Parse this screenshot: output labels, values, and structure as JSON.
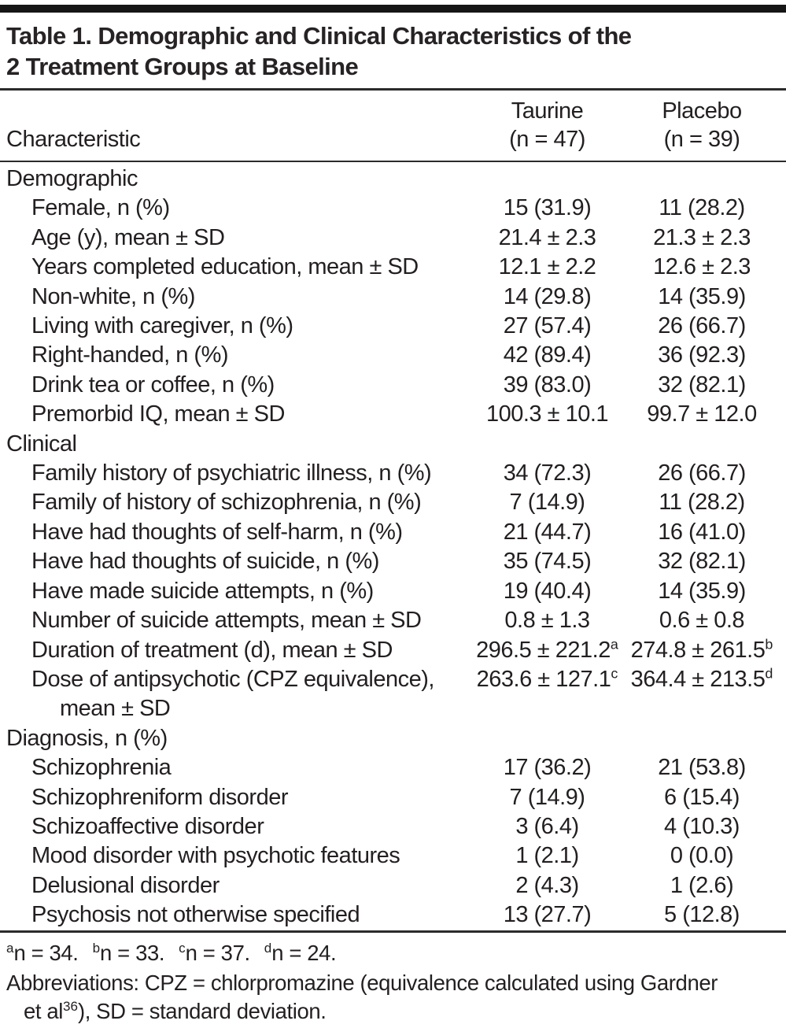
{
  "document": {
    "title_lines": [
      "Table 1. Demographic and Clinical Characteristics of the",
      "2 Treatment Groups at Baseline"
    ]
  },
  "table": {
    "header": {
      "characteristic": "Characteristic",
      "groups": [
        {
          "name": "Taurine",
          "n_label": "(n = 47)"
        },
        {
          "name": "Placebo",
          "n_label": "(n = 39)"
        }
      ]
    },
    "rows": [
      {
        "type": "section",
        "label": "Demographic"
      },
      {
        "type": "item",
        "label": "Female, n (%)",
        "taurine": "15 (31.9)",
        "placebo": "11 (28.2)"
      },
      {
        "type": "item",
        "label": "Age (y), mean ± SD",
        "taurine": "21.4 ± 2.3",
        "placebo": "21.3 ± 2.3"
      },
      {
        "type": "item",
        "label": "Years completed education, mean ± SD",
        "taurine": "12.1 ± 2.2",
        "placebo": "12.6 ± 2.3"
      },
      {
        "type": "item",
        "label": "Non-white, n (%)",
        "taurine": "14 (29.8)",
        "placebo": "14 (35.9)"
      },
      {
        "type": "item",
        "label": "Living with caregiver, n (%)",
        "taurine": "27 (57.4)",
        "placebo": "26 (66.7)"
      },
      {
        "type": "item",
        "label": "Right-handed, n (%)",
        "taurine": "42 (89.4)",
        "placebo": "36 (92.3)"
      },
      {
        "type": "item",
        "label": "Drink tea or coffee, n (%)",
        "taurine": "39 (83.0)",
        "placebo": "32 (82.1)"
      },
      {
        "type": "item",
        "label": "Premorbid IQ, mean ± SD",
        "taurine": "100.3 ± 10.1",
        "placebo": "99.7 ± 12.0"
      },
      {
        "type": "section",
        "label": "Clinical"
      },
      {
        "type": "item",
        "label": "Family history of psychiatric illness, n (%)",
        "taurine": "34 (72.3)",
        "placebo": "26 (66.7)"
      },
      {
        "type": "item",
        "label": "Family of history of schizophrenia, n (%)",
        "taurine": "7 (14.9)",
        "placebo": "11 (28.2)"
      },
      {
        "type": "item",
        "label": "Have had thoughts of self-harm, n (%)",
        "taurine": "21 (44.7)",
        "placebo": "16 (41.0)"
      },
      {
        "type": "item",
        "label": "Have had thoughts of suicide, n (%)",
        "taurine": "35 (74.5)",
        "placebo": "32 (82.1)"
      },
      {
        "type": "item",
        "label": "Have made suicide attempts, n (%)",
        "taurine": "19 (40.4)",
        "placebo": "14 (35.9)"
      },
      {
        "type": "item",
        "label": "Number of suicide attempts, mean ± SD",
        "taurine": "0.8 ± 1.3",
        "placebo": "0.6 ± 0.8"
      },
      {
        "type": "item",
        "label": "Duration of treatment (d), mean ± SD",
        "taurine": "296.5 ± 221.2",
        "taurine_sup": "a",
        "placebo": "274.8 ± 261.5",
        "placebo_sup": "b"
      },
      {
        "type": "item",
        "label": "Dose of antipsychotic (CPZ equivalence),",
        "label_line2": "mean ± SD",
        "taurine": "263.6 ± 127.1",
        "taurine_sup": "c",
        "placebo": "364.4 ± 213.5",
        "placebo_sup": "d"
      },
      {
        "type": "section",
        "label": "Diagnosis, n (%)"
      },
      {
        "type": "item",
        "label": "Schizophrenia",
        "taurine": "17 (36.2)",
        "placebo": "21 (53.8)"
      },
      {
        "type": "item",
        "label": "Schizophreniform disorder",
        "taurine": "7 (14.9)",
        "placebo": "6 (15.4)"
      },
      {
        "type": "item",
        "label": "Schizoaffective disorder",
        "taurine": "3 (6.4)",
        "placebo": "4 (10.3)"
      },
      {
        "type": "item",
        "label": "Mood disorder with psychotic features",
        "taurine": "1 (2.1)",
        "placebo": "0 (0.0)"
      },
      {
        "type": "item",
        "label": "Delusional disorder",
        "taurine": "2 (4.3)",
        "placebo": "1 (2.6)"
      },
      {
        "type": "item",
        "label": "Psychosis not otherwise specified",
        "taurine": "13 (27.7)",
        "placebo": "5 (12.8)"
      }
    ]
  },
  "footnotes": {
    "sample_sizes": [
      {
        "sup": "a",
        "text": "n = 34."
      },
      {
        "sup": "b",
        "text": "n = 33."
      },
      {
        "sup": "c",
        "text": "n = 37."
      },
      {
        "sup": "d",
        "text": "n = 24."
      }
    ],
    "abbreviations": [
      {
        "text": "Abbreviations: CPZ = chlorpromazine (equivalence calculated using Gardner"
      },
      {
        "br": true
      },
      {
        "text": "et al"
      },
      {
        "sup": "36"
      },
      {
        "text": "), SD = standard deviation."
      }
    ]
  }
}
